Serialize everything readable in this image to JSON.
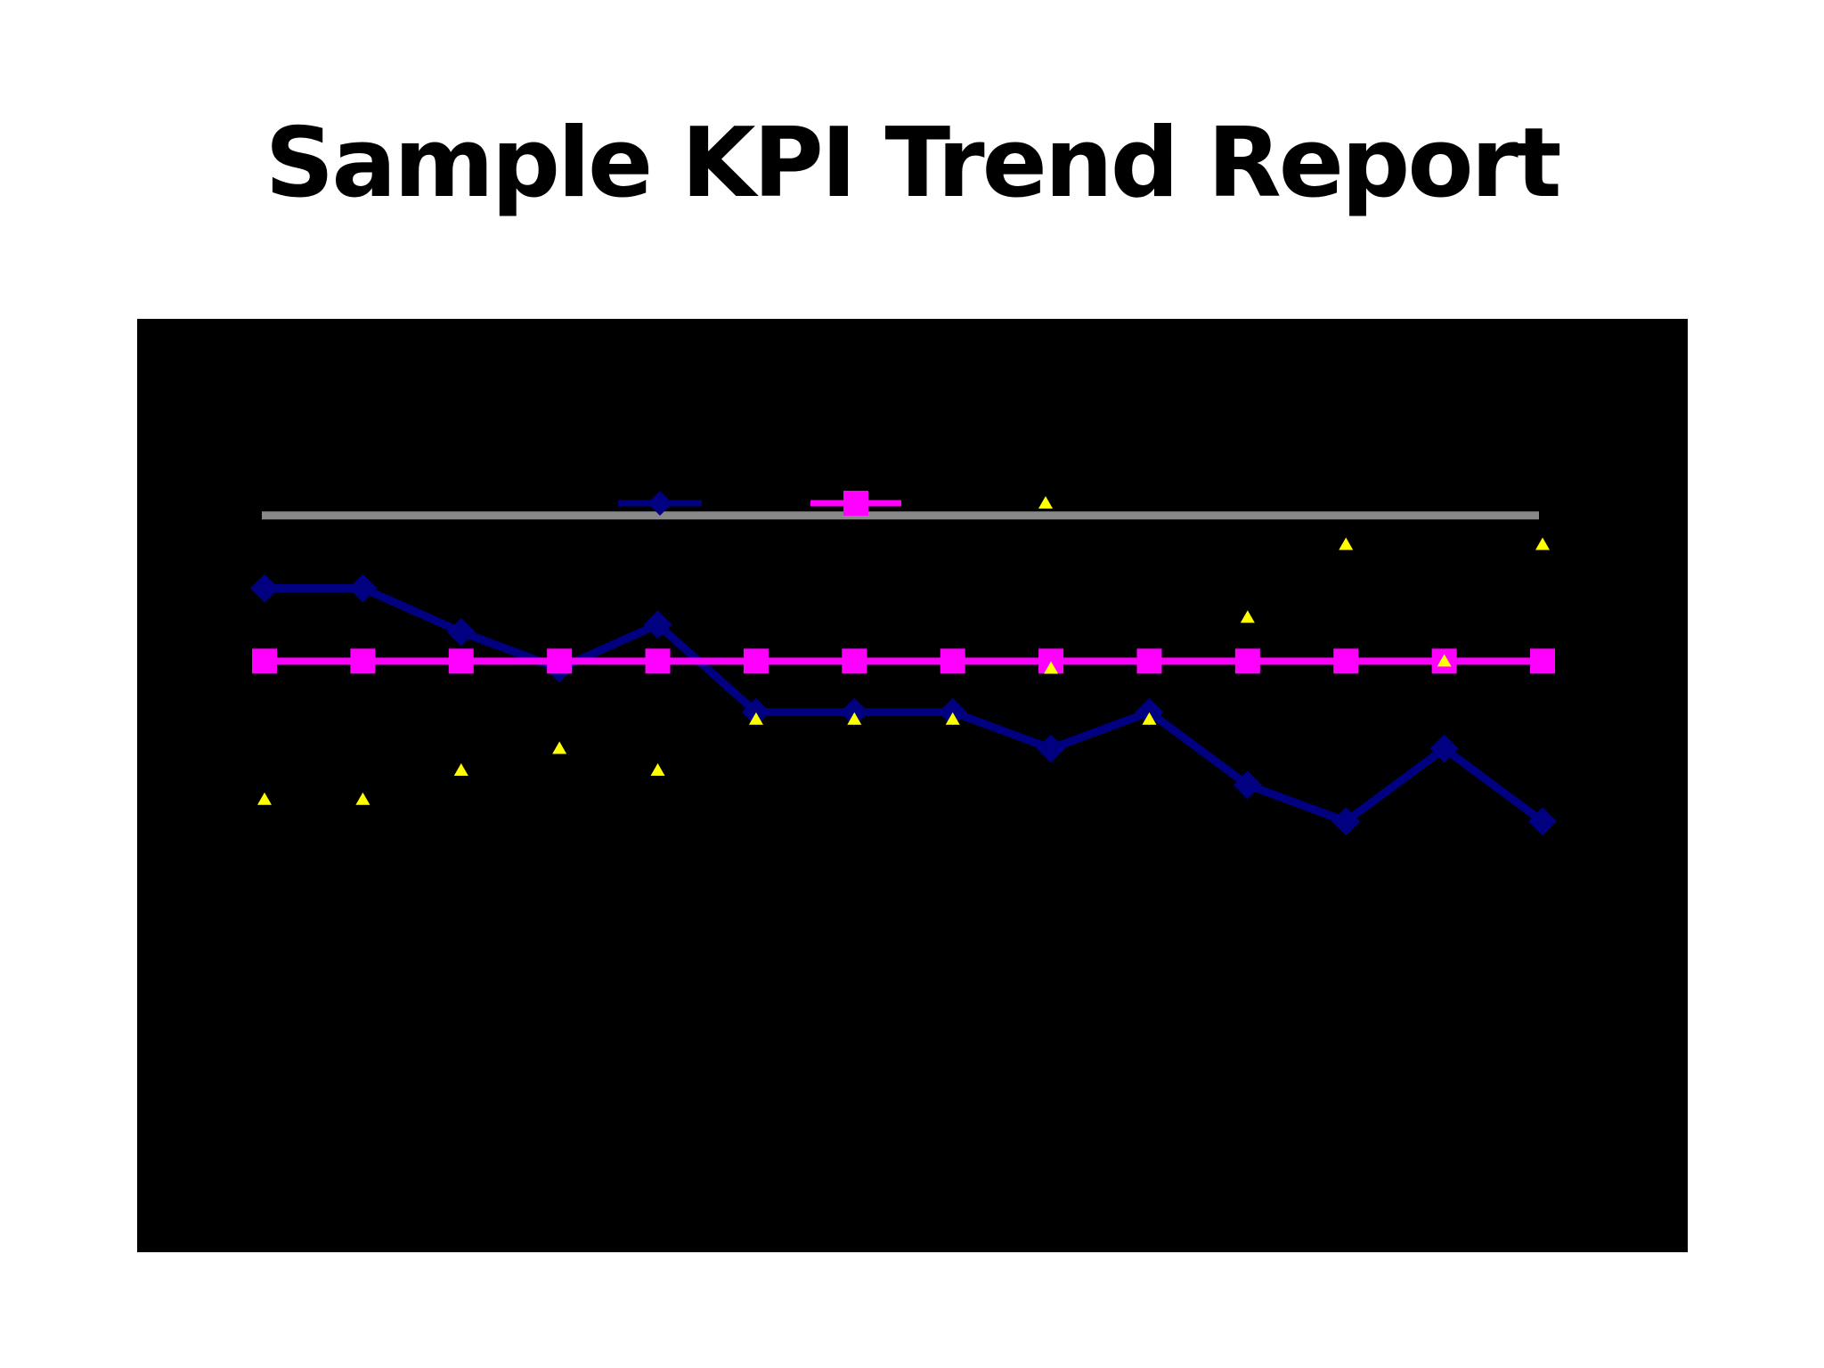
{
  "slide": {
    "title": "Sample KPI Trend Report"
  },
  "chart_data": {
    "type": "line",
    "background": "#000000",
    "legend_placement": "top-center",
    "x": [
      1,
      2,
      3,
      4,
      5,
      6,
      7,
      8,
      9,
      10,
      11,
      12,
      13,
      14
    ],
    "ylim": [
      0,
      1
    ],
    "series": [
      {
        "color": "#000080",
        "marker": "diamond",
        "values": [
          0.86,
          0.86,
          0.8,
          0.75,
          0.81,
          0.69,
          0.69,
          0.69,
          0.64,
          0.69,
          0.59,
          0.54,
          0.64,
          0.54
        ]
      },
      {
        "color": "#ff00ff",
        "marker": "square",
        "values": [
          0.76,
          0.76,
          0.76,
          0.76,
          0.76,
          0.76,
          0.76,
          0.76,
          0.76,
          0.76,
          0.76,
          0.76,
          0.76,
          0.76
        ]
      },
      {
        "color": "#ffff00",
        "marker": "triangle",
        "values": [
          0.57,
          0.57,
          0.61,
          0.64,
          0.61,
          0.68,
          0.68,
          0.68,
          0.75,
          0.68,
          0.82,
          0.92,
          0.76,
          0.92
        ]
      }
    ],
    "reference_line": {
      "color": "#888888",
      "value": 0.96
    }
  }
}
